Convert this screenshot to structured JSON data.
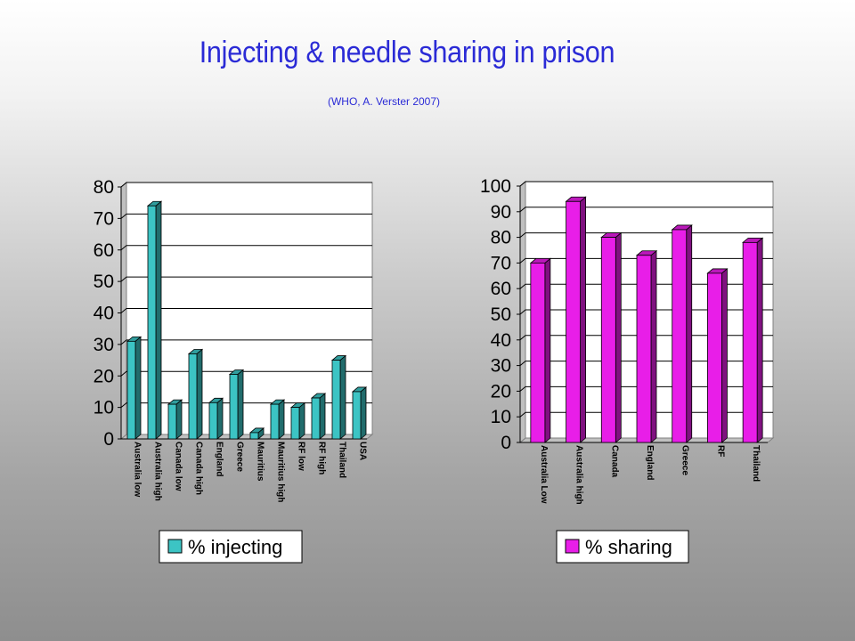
{
  "header": {
    "title": "Injecting & needle sharing in prison",
    "subtitle": "(WHO, A. Verster 2007)"
  },
  "colors": {
    "injecting": "#3cc4c4",
    "sharing": "#e81ee8"
  },
  "chart_data": [
    {
      "type": "bar",
      "categories": [
        "Australia low",
        "Australia high",
        "Canada low",
        "Canada high",
        "England",
        "Greece",
        "Mauritius",
        "Mauritius high",
        "RF low",
        "RF high",
        "Thailand",
        "USA"
      ],
      "series": [
        {
          "name": "% injecting",
          "values": [
            31,
            74,
            11,
            27,
            11.5,
            20.5,
            2,
            11,
            10,
            13,
            25,
            15
          ]
        }
      ],
      "yticks": [
        "0",
        "10",
        "20",
        "30",
        "40",
        "50",
        "60",
        "70",
        "80"
      ],
      "ylim": [
        0,
        80
      ],
      "grid": true,
      "legend": "bottom"
    },
    {
      "type": "bar",
      "categories": [
        "Australia Low",
        "Australia high",
        "Canada",
        "England",
        "Greece",
        "RF",
        "Thailand"
      ],
      "series": [
        {
          "name": "% sharing",
          "values": [
            70,
            94,
            80,
            73,
            83,
            66,
            78
          ]
        }
      ],
      "yticks": [
        "0",
        "10",
        "20",
        "30",
        "40",
        "50",
        "60",
        "70",
        "80",
        "90",
        "100"
      ],
      "ylim": [
        0,
        100
      ],
      "grid": true,
      "legend": "bottom"
    }
  ]
}
